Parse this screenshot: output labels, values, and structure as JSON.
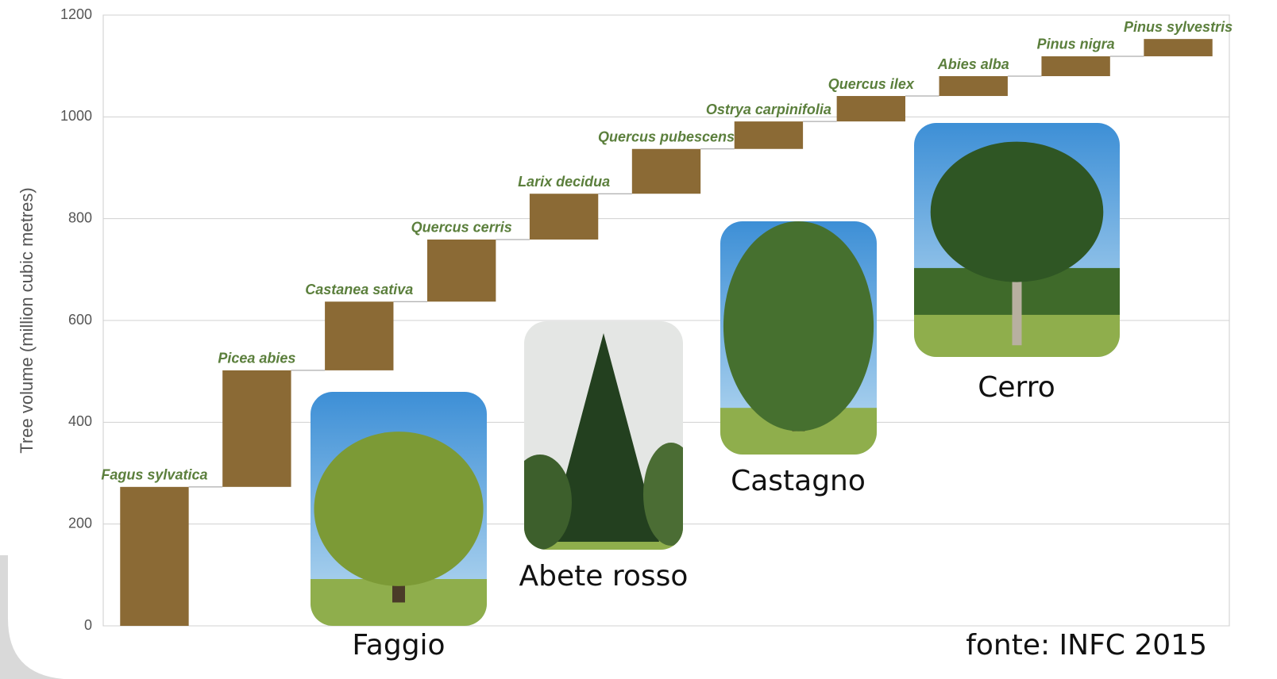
{
  "chart_data": {
    "type": "waterfall",
    "y_label": "Tree volume (million cubic metres)",
    "categories": [
      "Fagus sylvatica",
      "Picea abies",
      "Castanea sativa",
      "Quercus cerris",
      "Larix decidua",
      "Quercus pubescens",
      "Ostrya carpinifolia",
      "Quercus ilex",
      "Abies alba",
      "Pinus nigra",
      "Pinus sylvestris"
    ],
    "values": [
      273,
      229,
      135,
      122,
      90,
      88,
      54,
      50,
      39,
      39,
      34
    ],
    "color": "#8b6a35",
    "label_color": "#5b7f3c",
    "ylim": [
      0,
      1200
    ],
    "yticks": [
      0,
      200,
      400,
      600,
      800,
      1000,
      1200
    ],
    "grid": true,
    "photos": [
      {
        "caption": "Faggio"
      },
      {
        "caption": "Abete rosso"
      },
      {
        "caption": "Castagno"
      },
      {
        "caption": "Cerro"
      }
    ],
    "source": "fonte: INFC 2015"
  }
}
